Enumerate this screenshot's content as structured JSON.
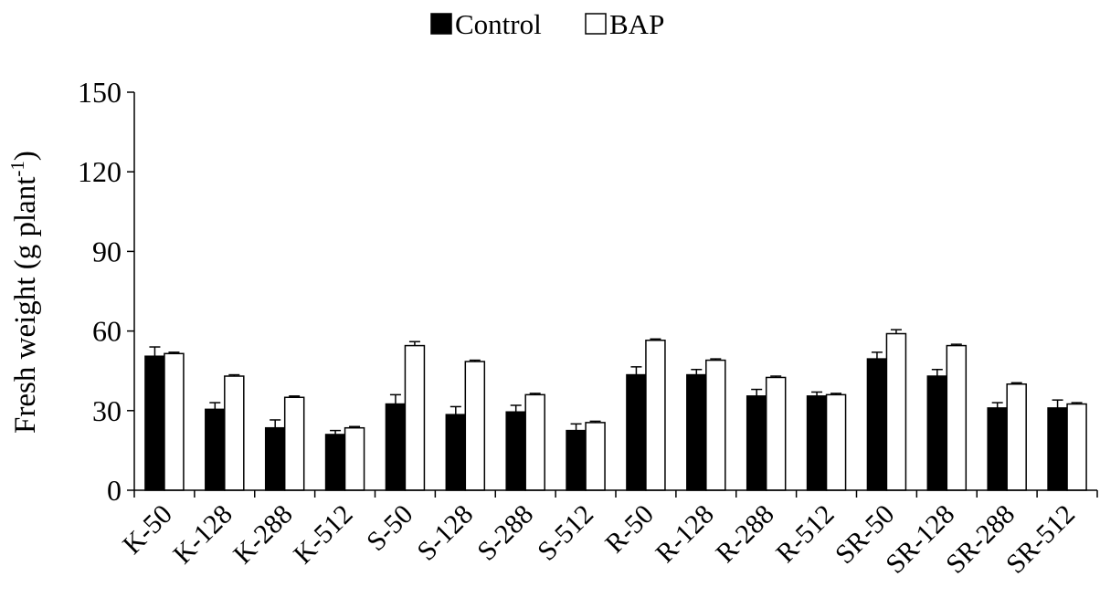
{
  "chart_data": {
    "type": "bar",
    "title": "",
    "xlabel": "",
    "ylabel": "Fresh weight (g plant",
    "ylabel_superscript": "-1",
    "ylabel_suffix": ")",
    "ylim": [
      0,
      150
    ],
    "yticks": [
      "0",
      "30",
      "60",
      "90",
      "120",
      "150"
    ],
    "grid": false,
    "legend_position": "top-center",
    "categories": [
      "K-50",
      "K-128",
      "K-288",
      "K-512",
      "S-50",
      "S-128",
      "S-288",
      "S-512",
      "R-50",
      "R-128",
      "R-288",
      "R-512",
      "SR-50",
      "SR-128",
      "SR-288",
      "SR-512"
    ],
    "series": [
      {
        "name": "Control",
        "color": "#000000",
        "values": [
          50.5,
          30.5,
          23.5,
          21,
          32.5,
          28.5,
          29.5,
          22.5,
          43.5,
          43.5,
          35.5,
          35.5,
          49.5,
          43,
          31,
          31
        ],
        "errors": [
          3.5,
          2.5,
          3,
          1.5,
          3.5,
          3,
          2.5,
          2.5,
          3,
          2,
          2.5,
          1.5,
          2.5,
          2.5,
          2,
          3
        ]
      },
      {
        "name": "BAP",
        "color": "#ffffff",
        "values": [
          51.5,
          43,
          35,
          23.5,
          54.5,
          48.5,
          36,
          25.5,
          56.5,
          49,
          42.5,
          36,
          59,
          54.5,
          40,
          32.5
        ],
        "errors": [
          0.5,
          0.5,
          0.5,
          0.5,
          1.5,
          0.5,
          0.5,
          0.5,
          0.5,
          0.5,
          0.5,
          0.5,
          1.5,
          0.5,
          0.5,
          0.5
        ]
      }
    ]
  }
}
